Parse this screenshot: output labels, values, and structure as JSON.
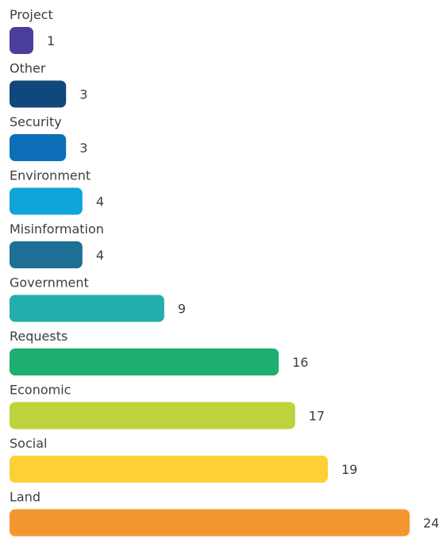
{
  "chart_data": {
    "type": "bar",
    "orientation": "horizontal",
    "categories": [
      "Project",
      "Other",
      "Security",
      "Environment",
      "Misinformation",
      "Government",
      "Requests",
      "Economic",
      "Social",
      "Land"
    ],
    "values": [
      1,
      3,
      3,
      4,
      4,
      9,
      16,
      17,
      19,
      24
    ],
    "colors": [
      "#4b3f9c",
      "#10477c",
      "#0e6fb8",
      "#0fa4da",
      "#1d6f96",
      "#24aeab",
      "#1daf6f",
      "#bfd13c",
      "#fdd034",
      "#f4962f"
    ],
    "title": "",
    "xlabel": "",
    "ylabel": "",
    "grid": false,
    "legend": "none",
    "data_labels": true
  }
}
